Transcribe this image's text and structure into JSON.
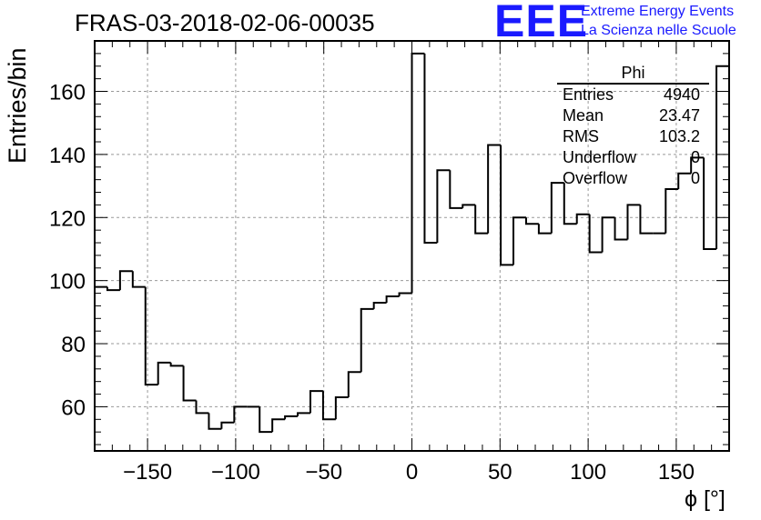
{
  "title": "FRAS-03-2018-02-06-00035",
  "logo": {
    "mark": "EEE",
    "line1": "Extreme Energy Events",
    "line2": "La Scienza nelle Scuole",
    "color": "#1a1aff"
  },
  "stats_box": {
    "name": "Phi",
    "rows": [
      {
        "key": "Entries",
        "value": "4940"
      },
      {
        "key": "Mean",
        "value": "23.47"
      },
      {
        "key": "RMS",
        "value": "103.2"
      },
      {
        "key": "Underflow",
        "value": "0"
      },
      {
        "key": "Overflow",
        "value": "0"
      }
    ]
  },
  "chart_data": {
    "type": "bar",
    "style": "histogram-step",
    "xlabel": "ϕ [°]",
    "ylabel": "Entries/bin",
    "xlim": [
      -180,
      180
    ],
    "ylim": [
      46,
      176
    ],
    "bin_width": 7.2,
    "grid": true,
    "x_ticks": [
      -150,
      -100,
      -50,
      0,
      50,
      100,
      150
    ],
    "y_ticks": [
      60,
      80,
      100,
      120,
      140,
      160
    ],
    "bin_low_edges": [
      -180,
      -172.8,
      -165.6,
      -158.4,
      -151.2,
      -144,
      -136.8,
      -129.6,
      -122.4,
      -115.2,
      -108,
      -100.8,
      -93.6,
      -86.4,
      -79.2,
      -72,
      -64.8,
      -57.6,
      -50.4,
      -43.2,
      -36,
      -28.8,
      -21.6,
      -14.4,
      -7.2,
      0,
      7.2,
      14.4,
      21.6,
      28.8,
      36,
      43.2,
      50.4,
      57.6,
      64.8,
      72,
      79.2,
      86.4,
      93.6,
      100.8,
      108,
      115.2,
      122.4,
      129.6,
      136.8,
      144,
      151.2,
      158.4,
      165.6,
      172.8
    ],
    "values": [
      98,
      97,
      103,
      98,
      67,
      74,
      73,
      62,
      58,
      53,
      55,
      60,
      60,
      52,
      56,
      57,
      58,
      65,
      56,
      63,
      71,
      91,
      93,
      95,
      96,
      172,
      112,
      135,
      123,
      124,
      115,
      143,
      105,
      120,
      118,
      115,
      131,
      118,
      121,
      109,
      120,
      113,
      124,
      115,
      115,
      129,
      134,
      139,
      110,
      168
    ]
  }
}
